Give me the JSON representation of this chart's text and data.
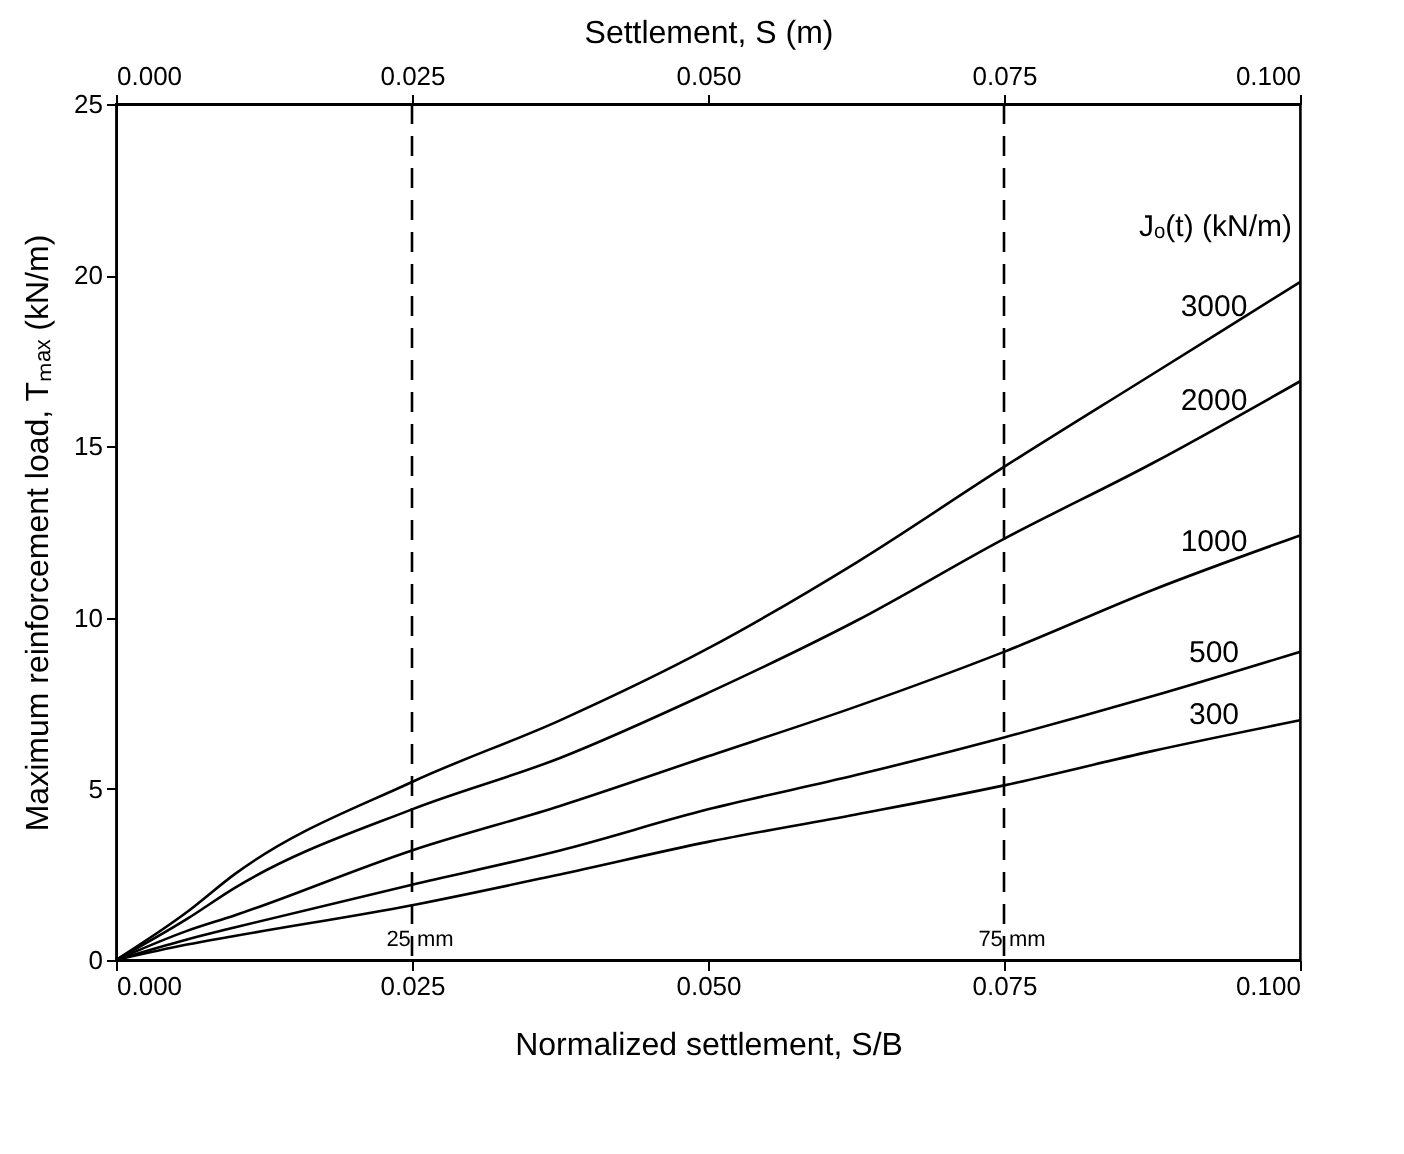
{
  "chart_data": {
    "type": "line",
    "xlabel": "Normalized settlement, S/B",
    "x2label": "Settlement, S (m)",
    "ylabel": "Maximum reinforcement load, Tₘₐₓ (kN/m)",
    "legend_title": "Jₒ(t) (kN/m)",
    "x": [
      0,
      0.006,
      0.01,
      0.025,
      0.0375,
      0.05,
      0.0625,
      0.075,
      0.0875,
      0.1
    ],
    "series": [
      {
        "name": "3000",
        "color": "#000000",
        "values": [
          0,
          1.4,
          2.5,
          5.2,
          7.0,
          9.1,
          11.6,
          14.4,
          17.1,
          19.8
        ]
      },
      {
        "name": "2000",
        "color": "#000000",
        "values": [
          0,
          1.2,
          2.1,
          4.4,
          5.9,
          7.8,
          9.9,
          12.3,
          14.5,
          16.9
        ]
      },
      {
        "name": "1000",
        "color": "#000000",
        "values": [
          0,
          0.85,
          1.3,
          3.2,
          4.5,
          5.95,
          7.4,
          9.0,
          10.8,
          12.4
        ]
      },
      {
        "name": "500",
        "color": "#000000",
        "values": [
          0,
          0.6,
          0.95,
          2.2,
          3.2,
          4.4,
          5.4,
          6.5,
          7.7,
          9.0
        ]
      },
      {
        "name": "300",
        "color": "#000000",
        "values": [
          0,
          0.45,
          0.7,
          1.6,
          2.5,
          3.45,
          4.25,
          5.1,
          6.1,
          7.0
        ]
      }
    ],
    "xlim": [
      0,
      0.1
    ],
    "xticks": [
      {
        "value": 0,
        "label": "0.000"
      },
      {
        "value": 0.025,
        "label": "0.025"
      },
      {
        "value": 0.05,
        "label": "0.050"
      },
      {
        "value": 0.075,
        "label": "0.075"
      },
      {
        "value": 0.1,
        "label": "0.100"
      }
    ],
    "x2lim": [
      0,
      0.1
    ],
    "x2ticks": [
      {
        "value": 0,
        "label": "0.000"
      },
      {
        "value": 0.025,
        "label": "0.025"
      },
      {
        "value": 0.05,
        "label": "0.050"
      },
      {
        "value": 0.075,
        "label": "0.075"
      },
      {
        "value": 0.1,
        "label": "0.100"
      }
    ],
    "ylim": [
      0,
      25
    ],
    "yticks": [
      0,
      5,
      10,
      15,
      20,
      25
    ],
    "ref_lines": [
      {
        "axis": "x",
        "value": 0.025,
        "label": "25 mm",
        "line_style": "dashed",
        "color": "#000000"
      },
      {
        "axis": "x",
        "value": 0.075,
        "label": "75 mm",
        "line_style": "dashed",
        "color": "#000000"
      }
    ],
    "grid": false,
    "legend": false,
    "marker": "none",
    "line_style": "solid"
  }
}
